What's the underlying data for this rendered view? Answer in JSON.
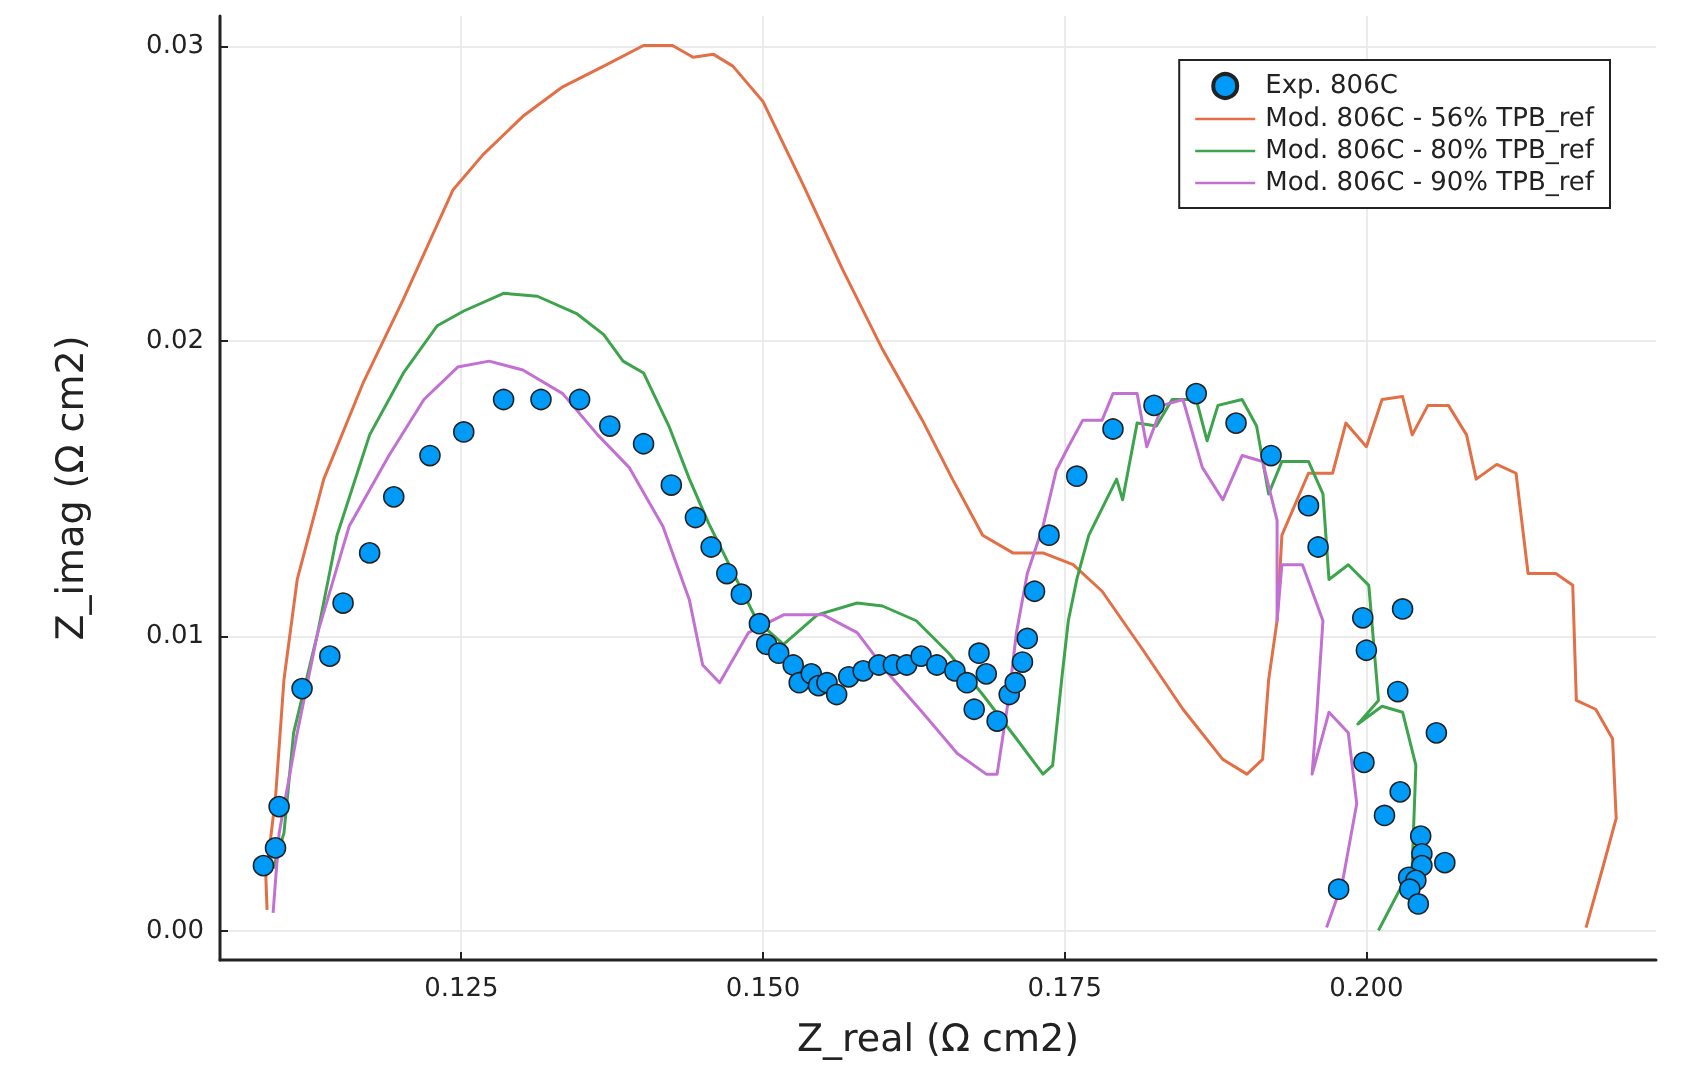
{
  "chart_data": {
    "type": "line",
    "xlabel": "Z_real (Ω cm2)",
    "ylabel": "Z_imag (Ω cm2)",
    "xlim": [
      0.105,
      0.224
    ],
    "xticks": [
      {
        "value": 0.125,
        "label": "0.125"
      },
      {
        "value": 0.15,
        "label": "0.150"
      },
      {
        "value": 0.175,
        "label": "0.175"
      },
      {
        "value": 0.2,
        "label": "0.200"
      }
    ],
    "ylim": [
      -0.001,
      0.031
    ],
    "yticks": [
      {
        "value": 0,
        "label": "0.00"
      },
      {
        "value": 0.01,
        "label": "0.01"
      },
      {
        "value": 0.02,
        "label": "0.02"
      },
      {
        "value": 0.03,
        "label": "0.03"
      }
    ],
    "grid": true,
    "legend": "top right",
    "series": [
      {
        "name": "Exp. 806C",
        "type": "scatter",
        "color": "#009af9",
        "x": [
          0.1086,
          0.1096,
          0.1099,
          0.1118,
          0.1141,
          0.1152,
          0.1174,
          0.1194,
          0.1224,
          0.1252,
          0.1285,
          0.1316,
          0.1348,
          0.1373,
          0.1401,
          0.1424,
          0.1444,
          0.1457,
          0.147,
          0.1482,
          0.1497,
          0.1503,
          0.1513,
          0.1525,
          0.153,
          0.154,
          0.1546,
          0.1553,
          0.1561,
          0.1571,
          0.1583,
          0.1596,
          0.1608,
          0.1619,
          0.1631,
          0.1644,
          0.1659,
          0.1669,
          0.1679,
          0.1685,
          0.1675,
          0.1694,
          0.1704,
          0.1709,
          0.1715,
          0.1719,
          0.1725,
          0.1737,
          0.176,
          0.179,
          0.1824,
          0.1859,
          0.1892,
          0.1921,
          0.1952,
          0.196,
          0.1997,
          0.203,
          0.2,
          0.2026,
          0.2058,
          0.1998,
          0.2028,
          0.2015,
          0.2045,
          0.2046,
          0.2046,
          0.2065,
          0.2035,
          0.2041,
          0.2036,
          0.2043,
          0.1977
        ],
        "values": [
          0.0022,
          0.0028,
          0.0042,
          0.0082,
          0.0093,
          0.0111,
          0.0128,
          0.0147,
          0.0161,
          0.0169,
          0.018,
          0.018,
          0.018,
          0.0171,
          0.0165,
          0.0151,
          0.014,
          0.013,
          0.0121,
          0.0114,
          0.0104,
          0.0097,
          0.0094,
          0.009,
          0.0084,
          0.0087,
          0.0083,
          0.0084,
          0.008,
          0.0086,
          0.0088,
          0.009,
          0.009,
          0.009,
          0.0093,
          0.009,
          0.0088,
          0.0084,
          0.0094,
          0.0087,
          0.0075,
          0.0071,
          0.008,
          0.0084,
          0.0091,
          0.0099,
          0.0115,
          0.0134,
          0.0154,
          0.017,
          0.0178,
          0.0182,
          0.0172,
          0.0161,
          0.0144,
          0.013,
          0.0106,
          0.0109,
          0.0095,
          0.0081,
          0.0067,
          0.0057,
          0.0047,
          0.0039,
          0.0032,
          0.0026,
          0.0022,
          0.0023,
          0.0018,
          0.0017,
          0.0014,
          0.0009,
          0.0014
        ]
      },
      {
        "name": "Mod. 806C - 56% TPB_ref",
        "color": "#e26f46",
        "x": [
          0.1089,
          0.1088,
          0.1091,
          0.1096,
          0.1103,
          0.1114,
          0.1136,
          0.1169,
          0.1202,
          0.1243,
          0.1268,
          0.1301,
          0.1334,
          0.1368,
          0.1401,
          0.1425,
          0.1442,
          0.1459,
          0.1475,
          0.15,
          0.1533,
          0.1566,
          0.1599,
          0.1632,
          0.1657,
          0.1682,
          0.1707,
          0.1732,
          0.1757,
          0.1781,
          0.1815,
          0.1848,
          0.1881,
          0.1901,
          0.1914,
          0.1919,
          0.1926,
          0.193,
          0.1952,
          0.1972,
          0.1983,
          0.2,
          0.2013,
          0.203,
          0.2038,
          0.2051,
          0.2068,
          0.2083,
          0.2091,
          0.2108,
          0.2124,
          0.2134,
          0.2157,
          0.2171,
          0.2174,
          0.219,
          0.2204,
          0.2207,
          0.2195,
          0.2182
        ],
        "values": [
          0.0007,
          0.0018,
          0.0028,
          0.0045,
          0.0085,
          0.0119,
          0.0153,
          0.0186,
          0.0214,
          0.0251,
          0.0263,
          0.0276,
          0.0286,
          0.0293,
          0.03,
          0.03,
          0.0296,
          0.0297,
          0.0293,
          0.0281,
          0.0253,
          0.0224,
          0.0197,
          0.0173,
          0.0153,
          0.0134,
          0.0128,
          0.0128,
          0.0124,
          0.0115,
          0.0095,
          0.0075,
          0.0058,
          0.0053,
          0.0058,
          0.0085,
          0.0105,
          0.0134,
          0.0155,
          0.0155,
          0.0172,
          0.0164,
          0.018,
          0.0181,
          0.0168,
          0.0178,
          0.0178,
          0.0168,
          0.0153,
          0.0158,
          0.0155,
          0.0121,
          0.0121,
          0.0117,
          0.0078,
          0.0075,
          0.0065,
          0.0038,
          0.002,
          0.0001
        ]
      },
      {
        "name": "Mod. 806C - 80% TPB_ref",
        "color": "#3da44d",
        "x": [
          0.1094,
          0.1103,
          0.1111,
          0.1131,
          0.1147,
          0.1174,
          0.1202,
          0.123,
          0.1252,
          0.1285,
          0.1313,
          0.1346,
          0.1368,
          0.1384,
          0.1401,
          0.1422,
          0.1439,
          0.1455,
          0.1478,
          0.1495,
          0.1517,
          0.1545,
          0.1578,
          0.1599,
          0.1627,
          0.1654,
          0.1682,
          0.171,
          0.1732,
          0.174,
          0.1748,
          0.1753,
          0.176,
          0.177,
          0.1793,
          0.1798,
          0.181,
          0.1826,
          0.1839,
          0.1859,
          0.1868,
          0.1877,
          0.1897,
          0.1909,
          0.1919,
          0.193,
          0.1952,
          0.1964,
          0.1969,
          0.1985,
          0.2002,
          0.201,
          0.1993,
          0.2013,
          0.203,
          0.2041,
          0.2038,
          0.201
        ],
        "values": [
          0.0021,
          0.0033,
          0.0067,
          0.0101,
          0.0134,
          0.0168,
          0.0189,
          0.0205,
          0.021,
          0.0216,
          0.0215,
          0.0209,
          0.0202,
          0.0193,
          0.0189,
          0.0171,
          0.0153,
          0.0138,
          0.0119,
          0.0105,
          0.0097,
          0.0107,
          0.0111,
          0.011,
          0.0105,
          0.0094,
          0.008,
          0.0065,
          0.0053,
          0.0056,
          0.0087,
          0.0105,
          0.0119,
          0.0134,
          0.0153,
          0.0146,
          0.0172,
          0.0171,
          0.018,
          0.018,
          0.0166,
          0.0178,
          0.018,
          0.0171,
          0.0148,
          0.0159,
          0.0159,
          0.0148,
          0.0119,
          0.0124,
          0.0117,
          0.0078,
          0.007,
          0.0076,
          0.0074,
          0.0056,
          0.0022,
          0
        ]
      },
      {
        "name": "Mod. 806C - 90% TPB_ref",
        "color": "#c271d2",
        "x": [
          0.1094,
          0.1099,
          0.1114,
          0.1131,
          0.1157,
          0.119,
          0.1219,
          0.1247,
          0.1273,
          0.1301,
          0.1334,
          0.1363,
          0.1389,
          0.1417,
          0.1439,
          0.145,
          0.1464,
          0.1488,
          0.1517,
          0.155,
          0.1578,
          0.1604,
          0.1632,
          0.1661,
          0.1685,
          0.1694,
          0.1704,
          0.171,
          0.1719,
          0.1732,
          0.1743,
          0.1753,
          0.1765,
          0.1781,
          0.179,
          0.181,
          0.1818,
          0.1831,
          0.1848,
          0.1864,
          0.1881,
          0.1897,
          0.1914,
          0.1926,
          0.1926,
          0.193,
          0.1947,
          0.1964,
          0.1959,
          0.1955,
          0.1969,
          0.1985,
          0.1992,
          0.198,
          0.1967
        ],
        "values": [
          0.0006,
          0.0033,
          0.0067,
          0.0101,
          0.0137,
          0.0161,
          0.018,
          0.0191,
          0.0193,
          0.019,
          0.0182,
          0.0168,
          0.0157,
          0.0137,
          0.0112,
          0.009,
          0.0084,
          0.0101,
          0.0107,
          0.0107,
          0.0101,
          0.0087,
          0.0074,
          0.006,
          0.0053,
          0.0053,
          0.008,
          0.0101,
          0.0121,
          0.0137,
          0.0156,
          0.0164,
          0.0173,
          0.0173,
          0.0182,
          0.0182,
          0.0164,
          0.0178,
          0.018,
          0.0157,
          0.0146,
          0.0161,
          0.0159,
          0.0139,
          0.0105,
          0.0124,
          0.0124,
          0.0105,
          0.0074,
          0.0053,
          0.0074,
          0.0067,
          0.0043,
          0.0016,
          0.0001
        ]
      }
    ]
  }
}
